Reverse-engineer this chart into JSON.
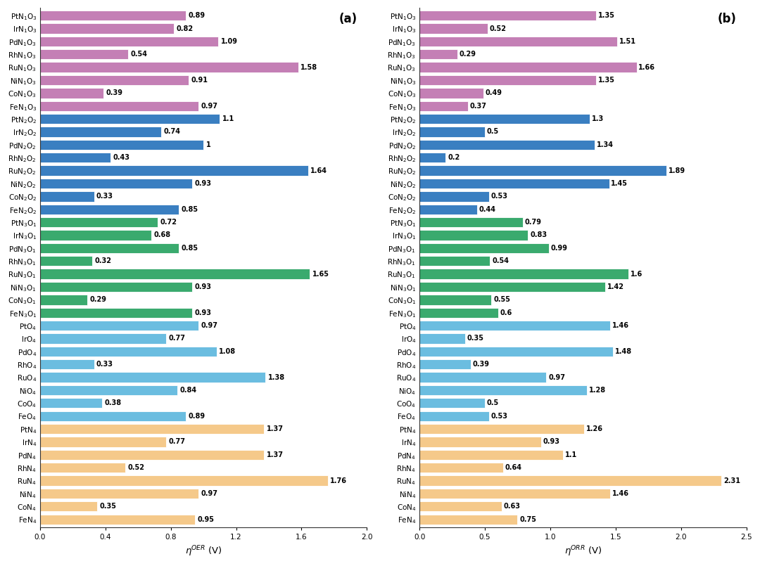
{
  "labels": [
    "PtN$_1$O$_3$",
    "IrN$_1$O$_3$",
    "PdN$_1$O$_3$",
    "RhN$_1$O$_3$",
    "RuN$_1$O$_3$",
    "NiN$_1$O$_3$",
    "CoN$_1$O$_3$",
    "FeN$_1$O$_3$",
    "PtN$_2$O$_2$",
    "IrN$_2$O$_2$",
    "PdN$_2$O$_2$",
    "RhN$_2$O$_2$",
    "RuN$_2$O$_2$",
    "NiN$_2$O$_2$",
    "CoN$_2$O$_2$",
    "FeN$_2$O$_2$",
    "PtN$_3$O$_1$",
    "IrN$_3$O$_1$",
    "PdN$_3$O$_1$",
    "RhN$_3$O$_1$",
    "RuN$_3$O$_1$",
    "NiN$_3$O$_1$",
    "CoN$_3$O$_1$",
    "FeN$_3$O$_1$",
    "PtO$_4$",
    "IrO$_4$",
    "PdO$_4$",
    "RhO$_4$",
    "RuO$_4$",
    "NiO$_4$",
    "CoO$_4$",
    "FeO$_4$",
    "PtN$_4$",
    "IrN$_4$",
    "PdN$_4$",
    "RhN$_4$",
    "RuN$_4$",
    "NiN$_4$",
    "CoN$_4$",
    "FeN$_4$"
  ],
  "oer_values": [
    0.89,
    0.82,
    1.09,
    0.54,
    1.58,
    0.91,
    0.39,
    0.97,
    1.1,
    0.74,
    1.0,
    0.43,
    1.64,
    0.93,
    0.33,
    0.85,
    0.72,
    0.68,
    0.85,
    0.32,
    1.65,
    0.93,
    0.29,
    0.93,
    0.97,
    0.77,
    1.08,
    0.33,
    1.38,
    0.84,
    0.38,
    0.89,
    1.37,
    0.77,
    1.37,
    0.52,
    1.76,
    0.97,
    0.35,
    0.95
  ],
  "oer_labels": [
    "0.89",
    "0.82",
    "1.09",
    "0.54",
    "1.58",
    "0.91",
    "0.39",
    "0.97",
    "1.1",
    "0.74",
    "1",
    "0.43",
    "1.64",
    "0.93",
    "0.33",
    "0.85",
    "0.72",
    "0.68",
    "0.85",
    "0.32",
    "1.65",
    "0.93",
    "0.29",
    "0.93",
    "0.97",
    "0.77",
    "1.08",
    "0.33",
    "1.38",
    "0.84",
    "0.38",
    "0.89",
    "1.37",
    "0.77",
    "1.37",
    "0.52",
    "1.76",
    "0.97",
    "0.35",
    "0.95"
  ],
  "orr_values": [
    1.35,
    0.52,
    1.51,
    0.29,
    1.66,
    1.35,
    0.49,
    0.37,
    1.3,
    0.5,
    1.34,
    0.2,
    1.89,
    1.45,
    0.53,
    0.44,
    0.79,
    0.83,
    0.99,
    0.54,
    1.6,
    1.42,
    0.55,
    0.6,
    1.46,
    0.35,
    1.48,
    0.39,
    0.97,
    1.28,
    0.5,
    0.53,
    1.26,
    0.93,
    1.1,
    0.64,
    2.31,
    1.46,
    0.63,
    0.75
  ],
  "orr_labels": [
    "1.35",
    "0.52",
    "1.51",
    "0.29",
    "1.66",
    "1.35",
    "0.49",
    "0.37",
    "1.3",
    "0.5",
    "1.34",
    "0.2",
    "1.89",
    "1.45",
    "0.53",
    "0.44",
    "0.79",
    "0.83",
    "0.99",
    "0.54",
    "1.6",
    "1.42",
    "0.55",
    "0.6",
    "1.46",
    "0.35",
    "1.48",
    "0.39",
    "0.97",
    "1.28",
    "0.5",
    "0.53",
    "1.26",
    "0.93",
    "1.1",
    "0.64",
    "2.31",
    "1.46",
    "0.63",
    "0.75"
  ],
  "colors": [
    "#c47fb5",
    "#c47fb5",
    "#c47fb5",
    "#c47fb5",
    "#c47fb5",
    "#c47fb5",
    "#c47fb5",
    "#c47fb5",
    "#3a7fc1",
    "#3a7fc1",
    "#3a7fc1",
    "#3a7fc1",
    "#3a7fc1",
    "#3a7fc1",
    "#3a7fc1",
    "#3a7fc1",
    "#3aaa6e",
    "#3aaa6e",
    "#3aaa6e",
    "#3aaa6e",
    "#3aaa6e",
    "#3aaa6e",
    "#3aaa6e",
    "#3aaa6e",
    "#6bbde0",
    "#6bbde0",
    "#6bbde0",
    "#6bbde0",
    "#6bbde0",
    "#6bbde0",
    "#6bbde0",
    "#6bbde0",
    "#f5c98a",
    "#f5c98a",
    "#f5c98a",
    "#f5c98a",
    "#f5c98a",
    "#f5c98a",
    "#f5c98a",
    "#f5c98a"
  ],
  "oer_xlabel": "$\\eta$$^{OER}$ (V)",
  "orr_xlabel": "$\\eta$$^{ORR}$ (V)",
  "oer_xlim": [
    0.0,
    2.0
  ],
  "orr_xlim": [
    0.0,
    2.5
  ],
  "oer_xticks": [
    0.0,
    0.4,
    0.8,
    1.2,
    1.6,
    2.0
  ],
  "orr_xticks": [
    0.0,
    0.5,
    1.0,
    1.5,
    2.0,
    2.5
  ],
  "label_a": "(a)",
  "label_b": "(b)",
  "bg_color": "#ffffff",
  "bar_height": 0.78,
  "fontsize_ticks": 7.5,
  "fontsize_labels": 9.5,
  "fontsize_values": 7.0,
  "fontsize_panel": 12
}
